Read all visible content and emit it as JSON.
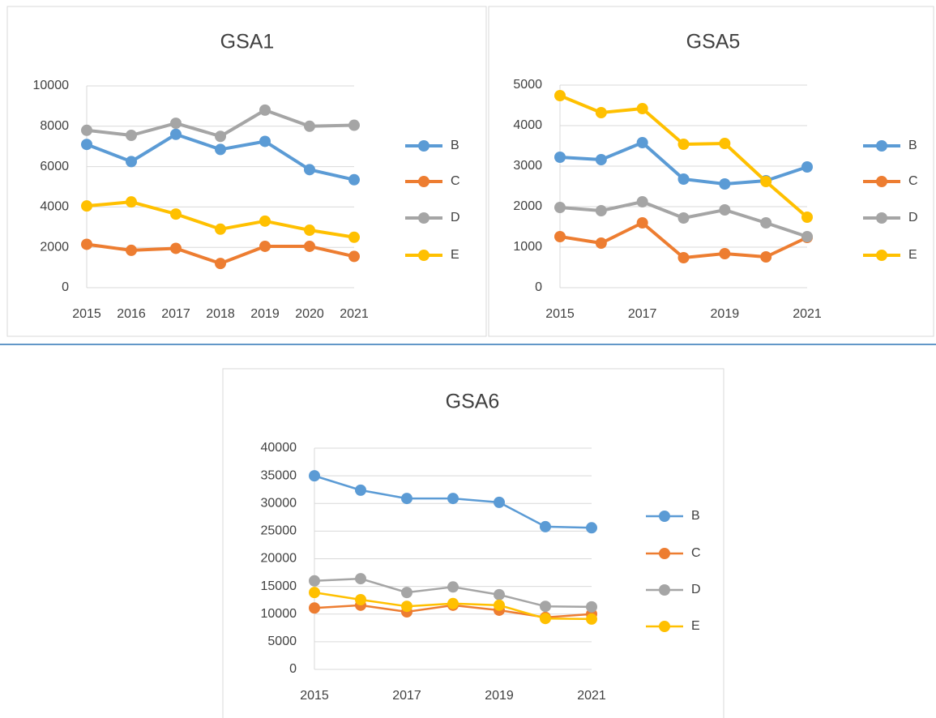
{
  "chart_data": [
    {
      "type": "line",
      "title": "GSA1",
      "categories": [
        "2015",
        "2016",
        "2017",
        "2018",
        "2019",
        "2020",
        "2021"
      ],
      "series": [
        {
          "name": "B",
          "color": "#5b9bd5",
          "values": [
            7100,
            6250,
            7600,
            6850,
            7250,
            5850,
            5350
          ]
        },
        {
          "name": "C",
          "color": "#ed7d31",
          "values": [
            2150,
            1850,
            1950,
            1200,
            2050,
            2050,
            1550
          ]
        },
        {
          "name": "D",
          "color": "#a5a5a5",
          "values": [
            7800,
            7550,
            8150,
            7500,
            8800,
            8000,
            8050
          ]
        },
        {
          "name": "E",
          "color": "#ffc000",
          "values": [
            4050,
            4250,
            3650,
            2900,
            3300,
            2850,
            2500
          ]
        }
      ],
      "ylim": [
        0,
        10000
      ],
      "yticks": [
        0,
        2000,
        4000,
        6000,
        8000,
        10000
      ],
      "grid": true,
      "legend": "right"
    },
    {
      "type": "line",
      "title": "GSA5",
      "categories": [
        "2015",
        null,
        "2017",
        null,
        "2019",
        null,
        "2021"
      ],
      "series": [
        {
          "name": "B",
          "color": "#5b9bd5",
          "values": [
            3220,
            3160,
            3580,
            2680,
            2560,
            2640,
            2980
          ]
        },
        {
          "name": "C",
          "color": "#ed7d31",
          "values": [
            1260,
            1100,
            1600,
            740,
            840,
            760,
            1240
          ]
        },
        {
          "name": "D",
          "color": "#a5a5a5",
          "values": [
            1980,
            1900,
            2120,
            1720,
            1920,
            1600,
            1260
          ]
        },
        {
          "name": "E",
          "color": "#ffc000",
          "values": [
            4740,
            4320,
            4420,
            3540,
            3560,
            2620,
            1740
          ]
        }
      ],
      "ylim": [
        0,
        5000
      ],
      "yticks": [
        0,
        1000,
        2000,
        3000,
        4000,
        5000
      ],
      "grid": true,
      "legend": "right"
    },
    {
      "type": "line",
      "title": "GSA6",
      "categories": [
        "2015",
        null,
        "2017",
        null,
        "2019",
        null,
        "2021"
      ],
      "series": [
        {
          "name": "B",
          "color": "#5b9bd5",
          "values": [
            35000,
            32400,
            30900,
            30900,
            30200,
            25800,
            25600
          ]
        },
        {
          "name": "C",
          "color": "#ed7d31",
          "values": [
            11100,
            11600,
            10400,
            11600,
            10700,
            9400,
            10000
          ]
        },
        {
          "name": "D",
          "color": "#a5a5a5",
          "values": [
            16000,
            16400,
            13900,
            14900,
            13500,
            11400,
            11300
          ]
        },
        {
          "name": "E",
          "color": "#ffc000",
          "values": [
            13900,
            12600,
            11400,
            11900,
            11600,
            9200,
            9100
          ]
        }
      ],
      "ylim": [
        0,
        40000
      ],
      "yticks": [
        0,
        5000,
        10000,
        15000,
        20000,
        25000,
        30000,
        35000,
        40000
      ],
      "grid": true,
      "legend": "right"
    }
  ]
}
